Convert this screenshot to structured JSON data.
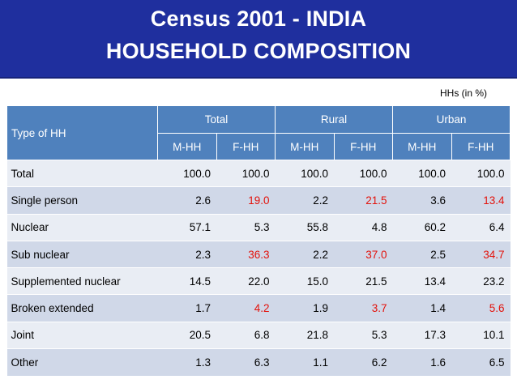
{
  "title": {
    "line1": "Census 2001 - INDIA",
    "line2": "HOUSEHOLD COMPOSITION"
  },
  "unit_note": "HHs (in %)",
  "table": {
    "type_header": "Type  of HH",
    "groups": [
      "Total",
      "Rural",
      "Urban"
    ],
    "subheaders": [
      "M-HH",
      "F-HH",
      "M-HH",
      "F-HH",
      "M-HH",
      "F-HH"
    ],
    "highlight_color": "#e3120b",
    "rows": [
      {
        "label": "Total",
        "values": [
          "100.0",
          "100.0",
          "100.0",
          "100.0",
          "100.0",
          "100.0"
        ]
      },
      {
        "label": "Single person",
        "values": [
          "2.6",
          "19.0",
          "2.2",
          "21.5",
          "3.6",
          "13.4"
        ]
      },
      {
        "label": "Nuclear",
        "values": [
          "57.1",
          "5.3",
          "55.8",
          "4.8",
          "60.2",
          "6.4"
        ]
      },
      {
        "label": "Sub nuclear",
        "values": [
          "2.3",
          "36.3",
          "2.2",
          "37.0",
          "2.5",
          "34.7"
        ]
      },
      {
        "label": "Supplemented nuclear",
        "values": [
          "14.5",
          "22.0",
          "15.0",
          "21.5",
          "13.4",
          "23.2"
        ]
      },
      {
        "label": "Broken extended",
        "values": [
          "1.7",
          "4.2",
          "1.9",
          "3.7",
          "1.4",
          "5.6"
        ]
      },
      {
        "label": "Joint",
        "values": [
          "20.5",
          "6.8",
          "21.8",
          "5.3",
          "17.3",
          "10.1"
        ]
      },
      {
        "label": "Other",
        "values": [
          "1.3",
          "6.3",
          "1.1",
          "6.2",
          "1.6",
          "6.5"
        ]
      }
    ],
    "highlighted_rows": [
      "Single person",
      "Sub nuclear",
      "Broken extended"
    ],
    "highlighted_column": "F-HH"
  }
}
